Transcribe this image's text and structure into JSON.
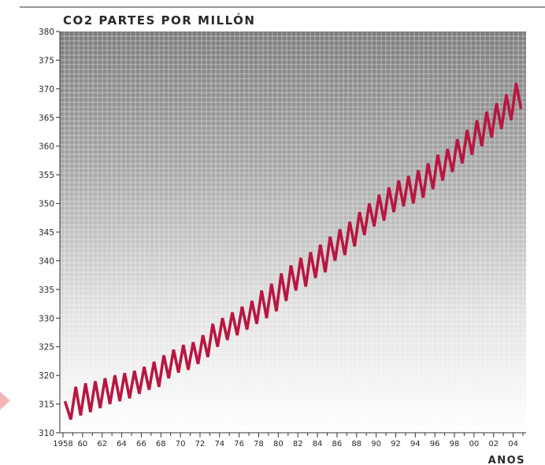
{
  "chart_data": {
    "type": "line",
    "title": "CO2 PARTES POR MILLÓN",
    "xlabel": "ANOS",
    "ylabel": "",
    "ylim": [
      310,
      380
    ],
    "xlim": [
      1958,
      2005
    ],
    "yticks": [
      310,
      315,
      320,
      325,
      330,
      335,
      340,
      345,
      350,
      355,
      360,
      365,
      370,
      375,
      380
    ],
    "xticks": [
      {
        "year": 1958,
        "label": "1958"
      },
      {
        "year": 1960,
        "label": "60"
      },
      {
        "year": 1962,
        "label": "62"
      },
      {
        "year": 1964,
        "label": "64"
      },
      {
        "year": 1966,
        "label": "66"
      },
      {
        "year": 1968,
        "label": "68"
      },
      {
        "year": 1970,
        "label": "70"
      },
      {
        "year": 1972,
        "label": "72"
      },
      {
        "year": 1974,
        "label": "74"
      },
      {
        "year": 1976,
        "label": "76"
      },
      {
        "year": 1978,
        "label": "78"
      },
      {
        "year": 1980,
        "label": "80"
      },
      {
        "year": 1982,
        "label": "82"
      },
      {
        "year": 1984,
        "label": "84"
      },
      {
        "year": 1986,
        "label": "86"
      },
      {
        "year": 1988,
        "label": "88"
      },
      {
        "year": 1990,
        "label": "90"
      },
      {
        "year": 1992,
        "label": "92"
      },
      {
        "year": 1994,
        "label": "94"
      },
      {
        "year": 1996,
        "label": "96"
      },
      {
        "year": 1998,
        "label": "98"
      },
      {
        "year": 2000,
        "label": "00"
      },
      {
        "year": 2002,
        "label": "02"
      },
      {
        "year": 2004,
        "label": "04"
      }
    ],
    "grid": true,
    "series": [
      {
        "color": "#b8173f",
        "x": [
          1958.2,
          1958.8,
          1959.3,
          1959.8,
          1960.3,
          1960.8,
          1961.3,
          1961.8,
          1962.3,
          1962.8,
          1963.3,
          1963.8,
          1964.3,
          1964.8,
          1965.3,
          1965.8,
          1966.3,
          1966.8,
          1967.3,
          1967.8,
          1968.3,
          1968.8,
          1969.3,
          1969.8,
          1970.3,
          1970.8,
          1971.3,
          1971.8,
          1972.3,
          1972.8,
          1973.3,
          1973.8,
          1974.3,
          1974.8,
          1975.3,
          1975.8,
          1976.3,
          1976.8,
          1977.3,
          1977.8,
          1978.3,
          1978.8,
          1979.3,
          1979.8,
          1980.3,
          1980.8,
          1981.3,
          1981.8,
          1982.3,
          1982.8,
          1983.3,
          1983.8,
          1984.3,
          1984.8,
          1985.3,
          1985.8,
          1986.3,
          1986.8,
          1987.3,
          1987.8,
          1988.3,
          1988.8,
          1989.3,
          1989.8,
          1990.3,
          1990.8,
          1991.3,
          1991.8,
          1992.3,
          1992.8,
          1993.3,
          1993.8,
          1994.3,
          1994.8,
          1995.3,
          1995.8,
          1996.3,
          1996.8,
          1997.3,
          1997.8,
          1998.3,
          1998.8,
          1999.3,
          1999.8,
          2000.3,
          2000.8,
          2001.3,
          2001.8,
          2002.3,
          2002.8,
          2003.3,
          2003.8,
          2004.3,
          2004.8
        ],
        "y": [
          315.5,
          312.3,
          318.0,
          313.0,
          318.6,
          313.6,
          319.0,
          314.3,
          319.5,
          315.0,
          320.0,
          315.5,
          320.4,
          316.0,
          320.8,
          316.8,
          321.5,
          317.5,
          322.4,
          318.0,
          323.5,
          319.5,
          324.5,
          320.5,
          325.3,
          321.0,
          325.8,
          322.0,
          327.0,
          323.2,
          329.0,
          325.0,
          330.0,
          326.2,
          331.0,
          327.0,
          332.0,
          328.0,
          333.0,
          329.0,
          334.8,
          330.0,
          336.0,
          331.2,
          337.8,
          333.0,
          339.2,
          334.8,
          340.5,
          335.5,
          341.5,
          337.0,
          342.8,
          338.0,
          344.2,
          340.0,
          345.5,
          341.0,
          346.8,
          342.5,
          348.5,
          344.5,
          350.0,
          346.0,
          351.5,
          347.0,
          352.8,
          348.5,
          354.0,
          349.5,
          354.8,
          350.0,
          355.8,
          351.0,
          357.0,
          352.5,
          358.5,
          354.0,
          359.5,
          355.5,
          361.2,
          357.0,
          362.8,
          358.5,
          364.5,
          360.0,
          366.0,
          361.5,
          367.5,
          363.0,
          369.0,
          364.5,
          371.0,
          366.5
        ]
      }
    ]
  }
}
